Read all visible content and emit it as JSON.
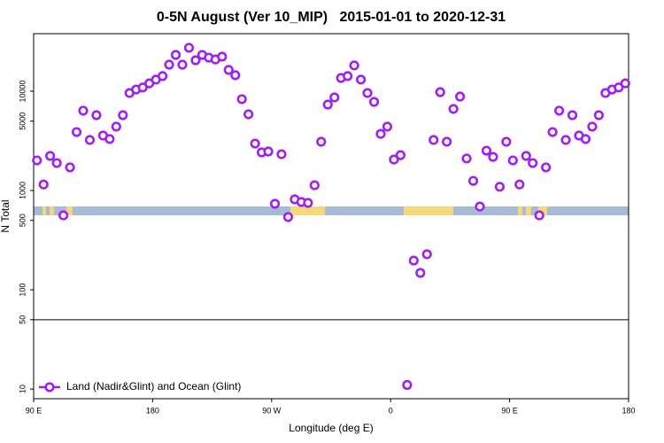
{
  "chart_data": {
    "type": "scatter",
    "title": "0-5N August (Ver 10_MIP)   2015-01-01 to 2020-12-31",
    "x_label": "Longitude (deg E)",
    "y_label": "N Total",
    "y_log": true,
    "legend": "bottom-left",
    "hline": 50,
    "xlim": [
      90,
      540
    ],
    "ylim": [
      8,
      38000
    ],
    "xticks": [
      {
        "value": 90,
        "label": "90 E"
      },
      {
        "value": 180,
        "label": "180"
      },
      {
        "value": 270,
        "label": "90 W"
      },
      {
        "value": 360,
        "label": "0"
      },
      {
        "value": 450,
        "label": "90 E"
      },
      {
        "value": 540,
        "label": "180"
      }
    ],
    "yticks": [
      10,
      50,
      100,
      500,
      1000,
      5000,
      10000
    ],
    "series": [
      {
        "name": "Land (Nadir&Glint) and Ocean (Glint)",
        "color": "#a020f0",
        "x": [
          92.5,
          97.5,
          102.5,
          107.5,
          112.5,
          117.5,
          122.5,
          127.5,
          132.5,
          137.5,
          142.5,
          147.5,
          152.5,
          157.5,
          162.5,
          167.5,
          172.5,
          177.5,
          182.5,
          187.5,
          192.5,
          197.5,
          202.5,
          207.5,
          212.5,
          217.5,
          222.5,
          227.5,
          232.5,
          237.5,
          242.5,
          247.5,
          252.5,
          257.5,
          262.5,
          267.5,
          272.5,
          277.5,
          282.5,
          287.5,
          292.5,
          297.5,
          302.5,
          307.5,
          312.5,
          317.5,
          322.5,
          327.5,
          332.5,
          337.5,
          342.5,
          347.5,
          352.5,
          357.5,
          362.5,
          367.5,
          372.5,
          377.5,
          382.5,
          387.5,
          392.5,
          397.5,
          402.5,
          407.5,
          412.5,
          417.5,
          422.5,
          427.5,
          432.5,
          437.5,
          442.5,
          447.5,
          452.5,
          457.5,
          462.5,
          467.5,
          472.5,
          477.5,
          482.5,
          487.5,
          492.5,
          497.5,
          502.5,
          507.5,
          512.5,
          517.5,
          522.5,
          527.5,
          532.5,
          537.5
        ],
        "values": [
          2010,
          1150,
          2230,
          1890,
          562,
          1710,
          3880,
          6370,
          3230,
          5740,
          3580,
          3300,
          4400,
          5740,
          9600,
          10400,
          10900,
          12000,
          13100,
          14200,
          18500,
          23200,
          18500,
          27400,
          20500,
          23200,
          21800,
          20900,
          22300,
          16400,
          14500,
          8320,
          5860,
          2970,
          2420,
          2470,
          735,
          2320,
          540,
          815,
          766,
          750,
          1130,
          3100,
          7340,
          8660,
          13600,
          14200,
          18200,
          13100,
          9600,
          7810,
          3720,
          4400,
          2050,
          2270,
          11,
          197,
          148,
          228,
          3230,
          9790,
          3100,
          6630,
          8830,
          2100,
          1250,
          690,
          2520,
          2180,
          1090,
          3100,
          2010,
          1150,
          2230,
          1890,
          562,
          1710,
          3880,
          6370,
          3230,
          5740,
          3580,
          3300,
          4400,
          5740,
          9600,
          10400,
          10900,
          12000
        ]
      }
    ]
  }
}
